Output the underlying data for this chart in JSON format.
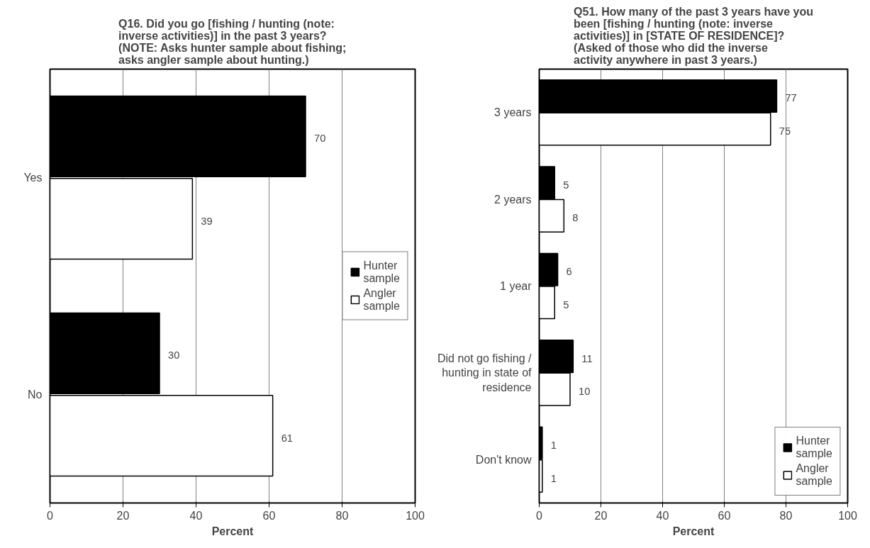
{
  "chart_data": [
    {
      "type": "bar",
      "orientation": "horizontal",
      "title": "Q16. Did you go [fishing / hunting (note: inverse activities)] in the past 3 years? (NOTE: Asks hunter sample about fishing; asks angler sample about hunting.)",
      "xlabel": "Percent",
      "categories": [
        "Yes",
        "No"
      ],
      "series": [
        {
          "name": "Hunter sample",
          "color": "#000000",
          "values": [
            70,
            30
          ]
        },
        {
          "name": "Angler sample",
          "color": "#ffffff",
          "values": [
            39,
            61
          ]
        }
      ],
      "xlim": [
        0,
        100
      ],
      "xticks": [
        0,
        20,
        40,
        60,
        80,
        100
      ],
      "grid": "x",
      "legend": "right",
      "data_labels": true
    },
    {
      "type": "bar",
      "orientation": "horizontal",
      "title": "Q51. How many of the past 3 years have you been [fishing / hunting (note: inverse activities)] in [STATE OF RESIDENCE]? (Asked of those who did the inverse activity anywhere in past 3 years.)",
      "xlabel": "Percent",
      "categories": [
        "3 years",
        "2 years",
        "1 year",
        "Did not go fishing / hunting in state of residence",
        "Don't know"
      ],
      "series": [
        {
          "name": "Hunter sample",
          "color": "#000000",
          "values": [
            77,
            5,
            6,
            11,
            1
          ]
        },
        {
          "name": "Angler sample",
          "color": "#ffffff",
          "values": [
            75,
            8,
            5,
            10,
            1
          ]
        }
      ],
      "xlim": [
        0,
        100
      ],
      "xticks": [
        0,
        20,
        40,
        60,
        80,
        100
      ],
      "grid": "x",
      "legend": "bottom right",
      "data_labels": true
    }
  ]
}
